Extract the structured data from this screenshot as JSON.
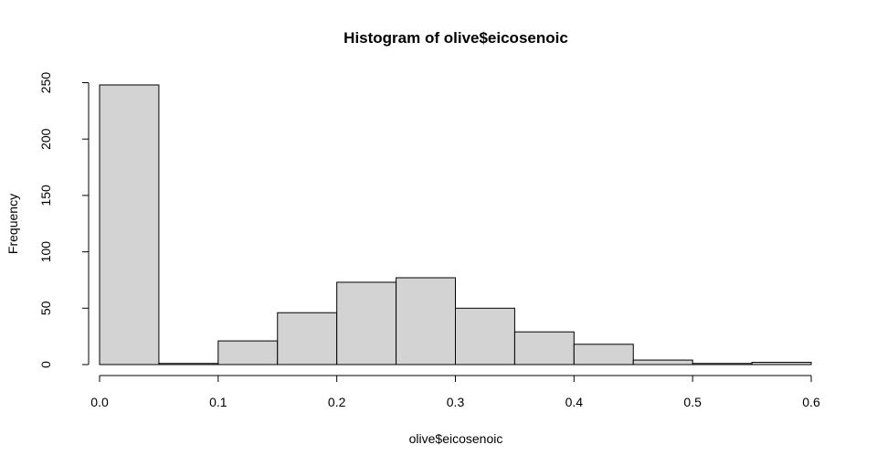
{
  "chart_data": {
    "type": "bar",
    "title": "Histogram of olive$eicosenoic",
    "xlabel": "olive$eicosenoic",
    "ylabel": "Frequency",
    "bin_edges": [
      0.0,
      0.05,
      0.1,
      0.15,
      0.2,
      0.25,
      0.3,
      0.35,
      0.4,
      0.45,
      0.5,
      0.55,
      0.6
    ],
    "values": [
      248,
      1,
      21,
      46,
      73,
      77,
      50,
      29,
      18,
      4,
      1,
      2
    ],
    "xlim": [
      0.0,
      0.6
    ],
    "ylim": [
      0,
      250
    ],
    "x_ticks": [
      0.0,
      0.1,
      0.2,
      0.3,
      0.4,
      0.5,
      0.6
    ],
    "x_tick_labels": [
      "0.0",
      "0.1",
      "0.2",
      "0.3",
      "0.4",
      "0.5",
      "0.6"
    ],
    "y_ticks": [
      0,
      50,
      100,
      150,
      200,
      250
    ],
    "y_tick_labels": [
      "0",
      "50",
      "100",
      "150",
      "200",
      "250"
    ],
    "bar_color": "#d3d3d3",
    "grid": false,
    "legend": "none"
  }
}
